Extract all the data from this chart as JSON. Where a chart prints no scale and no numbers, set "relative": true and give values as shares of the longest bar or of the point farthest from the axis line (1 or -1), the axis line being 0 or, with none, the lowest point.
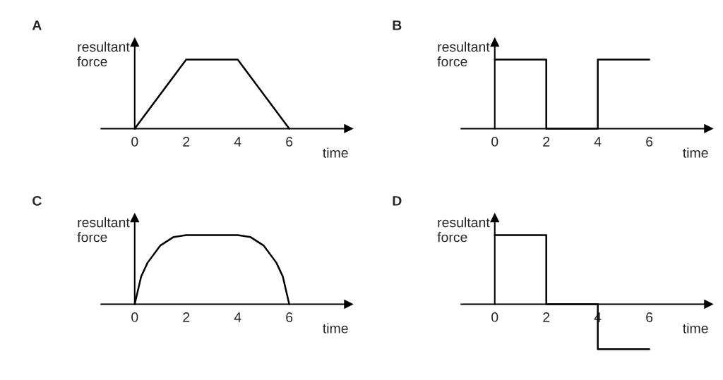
{
  "chart_data": [
    {
      "type": "line",
      "title": "A",
      "ylabel": "resultant\nforce",
      "xlabel": "time",
      "relative": true,
      "xlim": [
        -1.3,
        8.3
      ],
      "xticks": [
        0,
        2,
        4,
        6
      ],
      "x": [
        0,
        2,
        4,
        6
      ],
      "marker": "none",
      "series": [
        {
          "color": "#000000",
          "values": [
            0,
            1,
            1,
            0
          ]
        }
      ]
    },
    {
      "type": "step",
      "title": "B",
      "ylabel": "resultant\nforce",
      "xlabel": "time",
      "relative": true,
      "xlim": [
        -1.3,
        8.3
      ],
      "xticks": [
        0,
        2,
        4,
        6
      ],
      "x": [
        0,
        2,
        4,
        6
      ],
      "marker": "none",
      "series": [
        {
          "color": "#000000",
          "values": [
            1,
            0,
            1,
            1
          ]
        }
      ]
    },
    {
      "type": "line",
      "title": "C",
      "ylabel": "resultant\nforce",
      "xlabel": "time",
      "relative": true,
      "xlim": [
        -1.3,
        8.3
      ],
      "xticks": [
        0,
        2,
        4,
        6
      ],
      "x": [
        0,
        0.25,
        0.5,
        1,
        1.5,
        2,
        4,
        4.5,
        5,
        5.5,
        5.75,
        6
      ],
      "marker": "none",
      "series": [
        {
          "color": "#000000",
          "values": [
            0,
            0.4,
            0.6,
            0.85,
            0.97,
            1,
            1,
            0.97,
            0.85,
            0.6,
            0.4,
            0
          ]
        }
      ]
    },
    {
      "type": "step",
      "title": "D",
      "ylabel": "resultant\nforce",
      "xlabel": "time",
      "relative": true,
      "xlim": [
        -1.3,
        8.3
      ],
      "xticks": [
        0,
        2,
        4,
        6
      ],
      "x": [
        0,
        2,
        4,
        6
      ],
      "marker": "none",
      "series": [
        {
          "color": "#000000",
          "values": [
            1,
            0,
            -0.65,
            -0.65
          ]
        }
      ]
    }
  ]
}
